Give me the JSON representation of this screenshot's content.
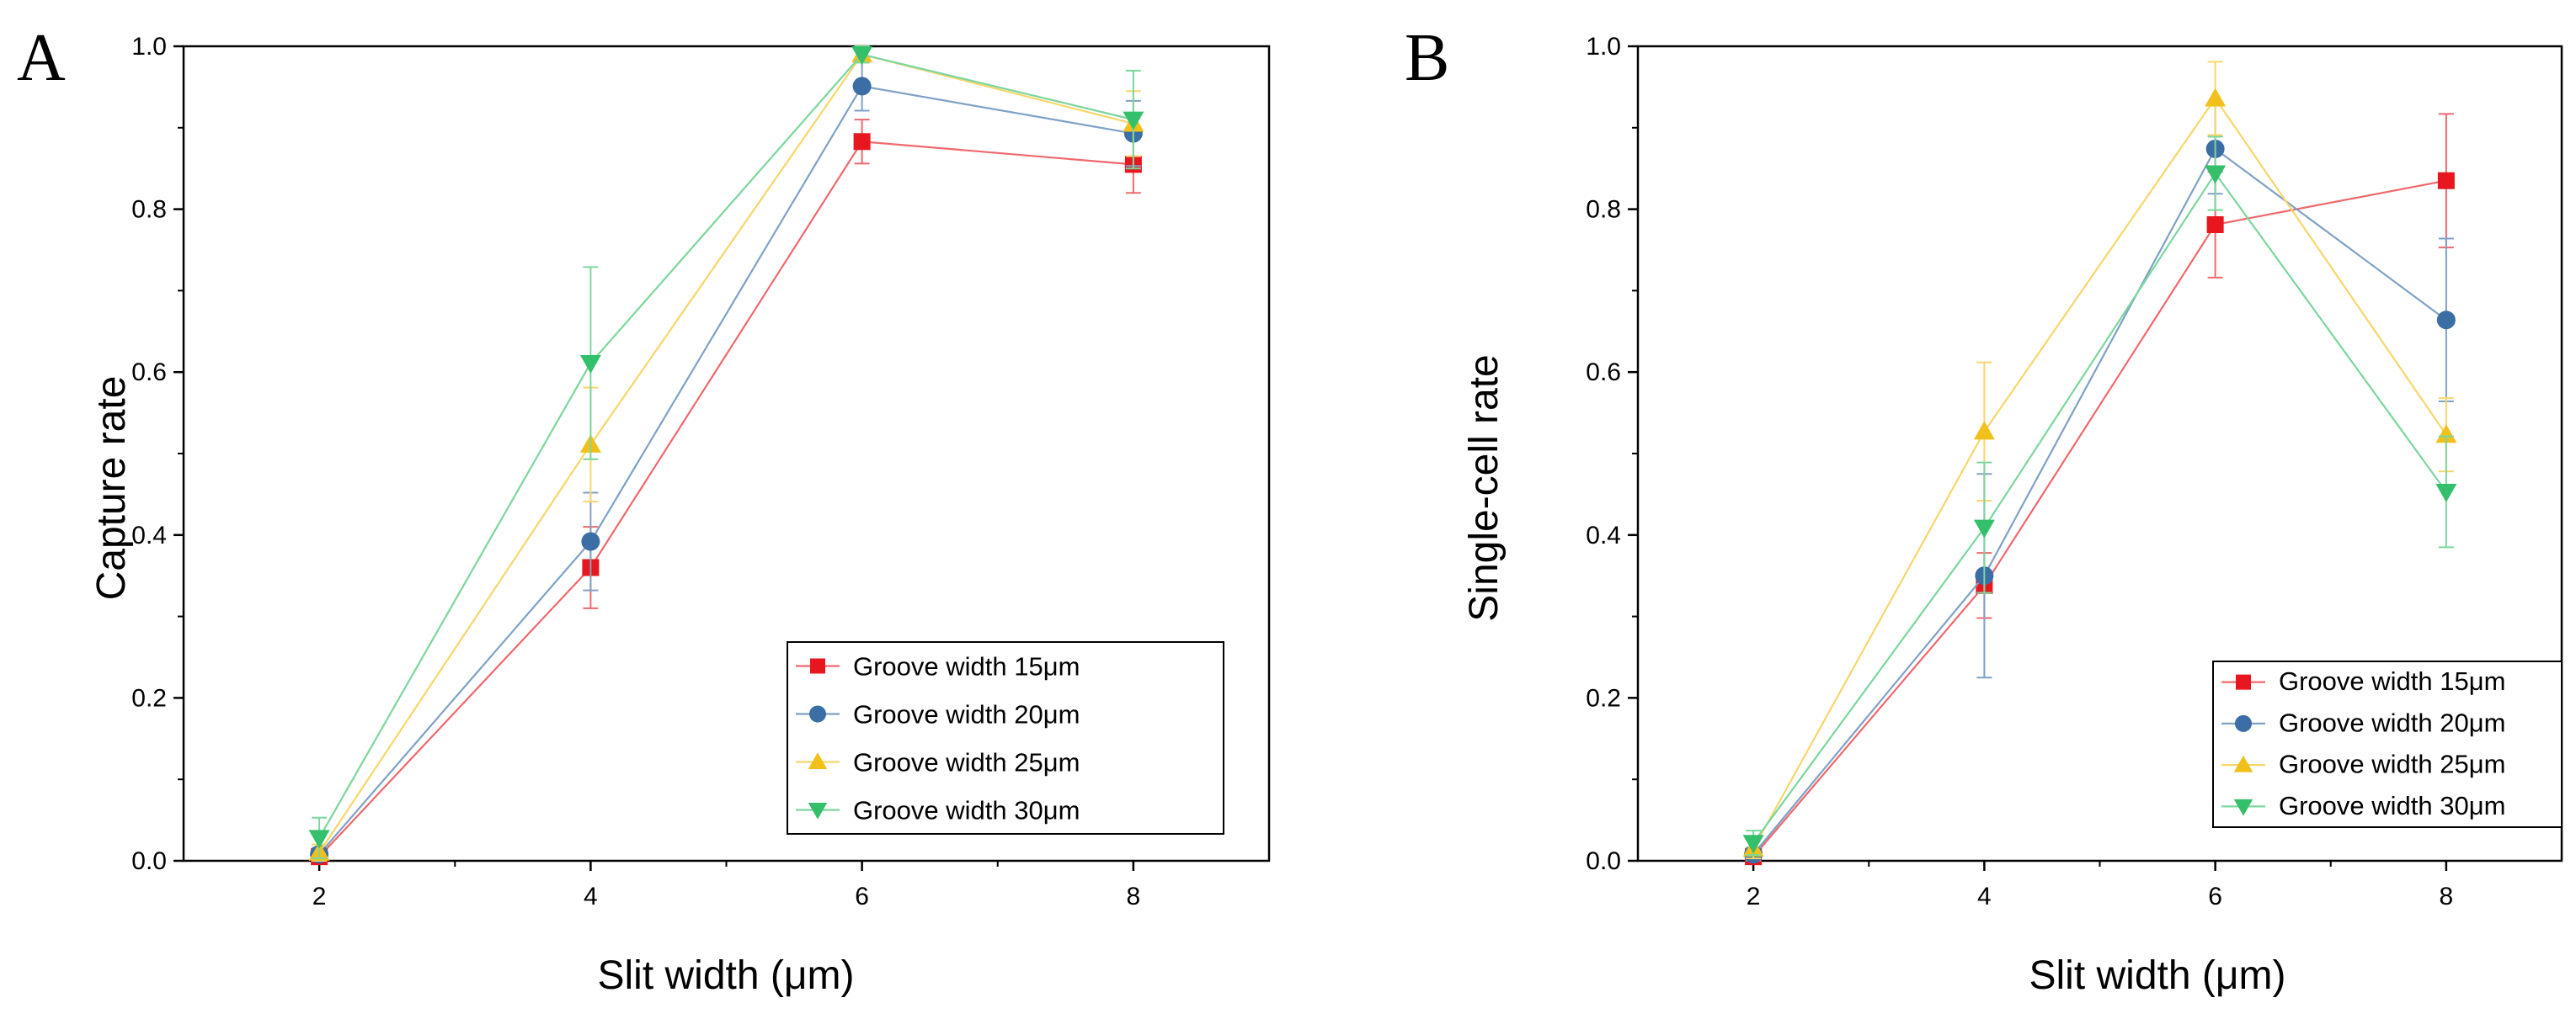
{
  "chart_data": [
    {
      "panel": "A",
      "type": "line",
      "xlabel": "Slit width (μm)",
      "ylabel": "Capture rate",
      "x": [
        2,
        4,
        6,
        8
      ],
      "xlim": [
        1,
        9
      ],
      "ylim": [
        0,
        1.0
      ],
      "xticks": [
        "2",
        "4",
        "6",
        "8"
      ],
      "yticks": [
        "0.0",
        "0.2",
        "0.4",
        "0.6",
        "0.8",
        "1.0"
      ],
      "legend_position": "bottom-right",
      "series": [
        {
          "name": "Groove width 15μm",
          "marker": "square",
          "color": "#e8161e",
          "values": [
            0.005,
            0.36,
            0.883,
            0.855
          ],
          "errors": [
            0.005,
            0.05,
            0.027,
            0.035
          ]
        },
        {
          "name": "Groove width 20μm",
          "marker": "circle",
          "color": "#3a6ea5",
          "values": [
            0.008,
            0.392,
            0.951,
            0.893
          ],
          "errors": [
            0.008,
            0.06,
            0.03,
            0.04
          ]
        },
        {
          "name": "Groove width 25μm",
          "marker": "triangle-up",
          "color": "#f2c01a",
          "values": [
            0.01,
            0.511,
            0.99,
            0.905
          ],
          "errors": [
            0.01,
            0.07,
            0.01,
            0.04
          ]
        },
        {
          "name": "Groove width 30μm",
          "marker": "triangle-down",
          "color": "#34c06a",
          "values": [
            0.028,
            0.611,
            0.99,
            0.91
          ],
          "errors": [
            0.025,
            0.118,
            0.01,
            0.06
          ]
        }
      ]
    },
    {
      "panel": "B",
      "type": "line",
      "xlabel": "Slit width (μm)",
      "ylabel": "Single-cell rate",
      "x": [
        2,
        4,
        6,
        8
      ],
      "xlim": [
        1,
        9
      ],
      "ylim": [
        0,
        1.0
      ],
      "xticks": [
        "2",
        "4",
        "6",
        "8"
      ],
      "yticks": [
        "0.0",
        "0.2",
        "0.4",
        "0.6",
        "0.8",
        "1.0"
      ],
      "legend_position": "bottom-right",
      "series": [
        {
          "name": "Groove width 15μm",
          "marker": "square",
          "color": "#e8161e",
          "values": [
            0.005,
            0.338,
            0.781,
            0.835
          ],
          "errors": [
            0.005,
            0.04,
            0.065,
            0.082
          ]
        },
        {
          "name": "Groove width 20μm",
          "marker": "circle",
          "color": "#3a6ea5",
          "values": [
            0.008,
            0.35,
            0.874,
            0.664
          ],
          "errors": [
            0.008,
            0.125,
            0.055,
            0.1
          ]
        },
        {
          "name": "Groove width 25μm",
          "marker": "triangle-up",
          "color": "#f2c01a",
          "values": [
            0.015,
            0.527,
            0.936,
            0.523
          ],
          "errors": [
            0.012,
            0.085,
            0.045,
            0.045
          ]
        },
        {
          "name": "Groove width 30μm",
          "marker": "triangle-down",
          "color": "#34c06a",
          "values": [
            0.022,
            0.409,
            0.844,
            0.453
          ],
          "errors": [
            0.015,
            0.08,
            0.045,
            0.068
          ]
        }
      ]
    }
  ]
}
